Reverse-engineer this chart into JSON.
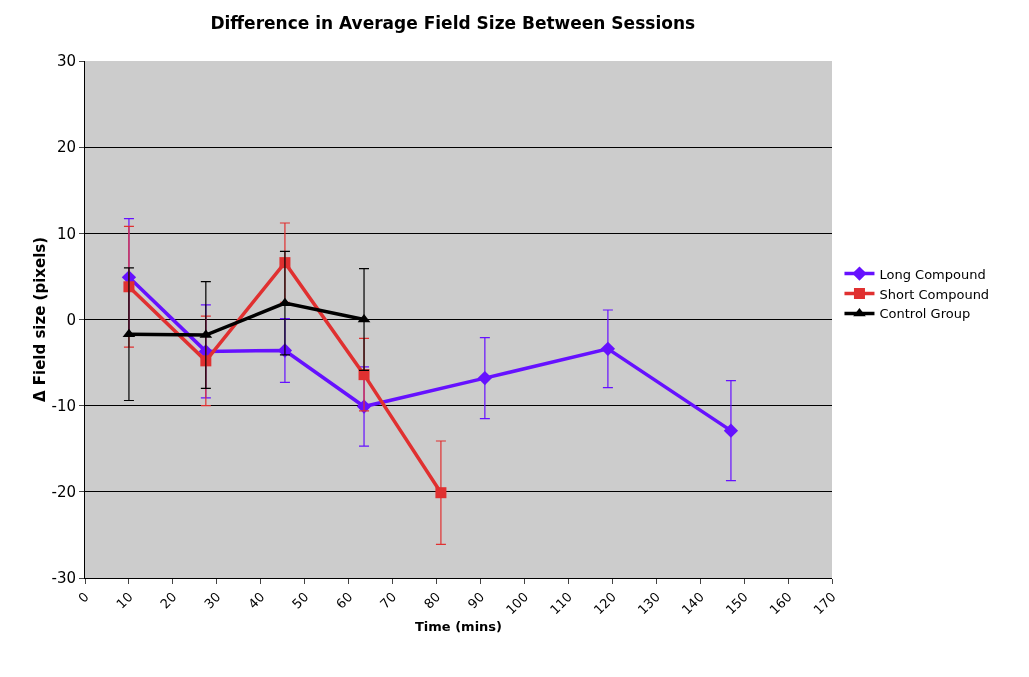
{
  "chart_data": {
    "type": "line",
    "title": "Difference in Average Field Size Between Sessions",
    "xlabel": "Time (mins)",
    "ylabel": "Δ Field size (pixels)",
    "xlim": [
      0,
      170
    ],
    "xticks": [
      0,
      10,
      20,
      30,
      40,
      50,
      60,
      70,
      80,
      90,
      100,
      110,
      120,
      130,
      140,
      150,
      160,
      170
    ],
    "ylim": [
      -30,
      30
    ],
    "yticks": [
      -30,
      -20,
      -10,
      0,
      10,
      20,
      30
    ],
    "grid": "y",
    "legend": "right",
    "series": [
      {
        "name": "Long Compound",
        "color": "#6611ff",
        "marker": "diamond",
        "x": [
          10,
          27.5,
          45.5,
          63.5,
          91,
          119,
          147
        ],
        "values": [
          4.9,
          -3.7,
          -3.6,
          -10.1,
          -6.8,
          -3.4,
          -12.9
        ],
        "errors": [
          6.8,
          5.4,
          3.7,
          4.6,
          4.7,
          4.5,
          5.8
        ]
      },
      {
        "name": "Short Compound",
        "color": "#e03030",
        "marker": "square",
        "x": [
          10,
          27.5,
          45.5,
          63.5,
          81
        ],
        "values": [
          3.8,
          -4.8,
          6.6,
          -6.4,
          -20.1
        ],
        "errors": [
          7,
          5.2,
          4.6,
          4.2,
          6
        ]
      },
      {
        "name": "Control Group",
        "color": "#000000",
        "marker": "triangle",
        "x": [
          10,
          27.5,
          45.5,
          63.5
        ],
        "values": [
          -1.7,
          -1.8,
          1.9,
          0
        ],
        "errors": [
          7.7,
          6.2,
          6,
          5.9
        ]
      }
    ]
  }
}
